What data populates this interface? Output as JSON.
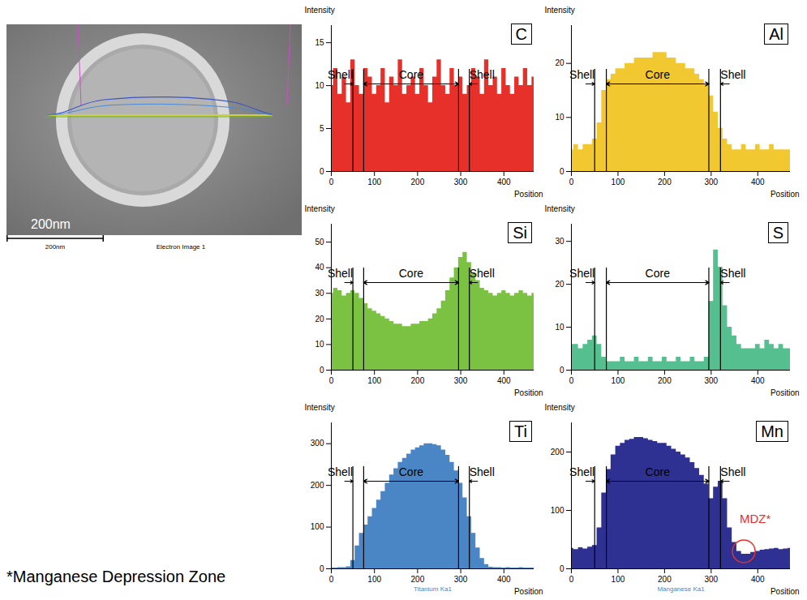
{
  "image": {
    "scale_bar_label": "200nm",
    "scale_caption": "200nm",
    "caption": "Electron Image 1"
  },
  "footnote": "*Manganese Depression Zone",
  "chart_data": [
    {
      "type": "area",
      "title": "C",
      "color": "#e8302a",
      "x_label": "Position",
      "y_label": "Intensity",
      "x": [
        0,
        10,
        20,
        30,
        40,
        50,
        60,
        70,
        80,
        90,
        100,
        110,
        120,
        130,
        140,
        150,
        160,
        170,
        180,
        190,
        200,
        210,
        220,
        230,
        240,
        250,
        260,
        270,
        280,
        290,
        300,
        310,
        320,
        330,
        340,
        350,
        360,
        370,
        380,
        390,
        400,
        410,
        420,
        430,
        440,
        450,
        460,
        470
      ],
      "values": [
        10,
        12,
        9,
        11,
        8,
        13,
        10,
        9,
        12,
        11,
        9,
        10,
        12,
        8,
        11,
        10,
        13,
        9,
        10,
        11,
        9,
        12,
        10,
        8,
        11,
        13,
        10,
        9,
        12,
        10,
        11,
        9,
        10,
        12,
        11,
        9,
        13,
        10,
        11,
        9,
        12,
        10,
        9,
        11,
        10,
        12,
        10,
        11
      ],
      "xlim": [
        0,
        470
      ],
      "xticks": [
        0,
        100,
        200,
        300,
        400
      ],
      "ylim": [
        0,
        17
      ],
      "yticks": [
        0,
        5,
        10,
        15
      ],
      "shell_core_boundaries": [
        50,
        75,
        295,
        320
      ],
      "regions": [
        "Shell",
        "Core",
        "Shell"
      ]
    },
    {
      "type": "area",
      "title": "Al",
      "color": "#f2c830",
      "x_label": "Position",
      "y_label": "Intensity",
      "x": [
        0,
        10,
        20,
        30,
        40,
        50,
        60,
        70,
        80,
        90,
        100,
        110,
        120,
        130,
        140,
        150,
        160,
        170,
        180,
        190,
        200,
        210,
        220,
        230,
        240,
        250,
        260,
        270,
        280,
        290,
        300,
        310,
        320,
        330,
        340,
        350,
        360,
        370,
        380,
        390,
        400,
        410,
        420,
        430,
        440,
        450,
        460,
        470
      ],
      "values": [
        4,
        5,
        4,
        5,
        5,
        6,
        9,
        15,
        17,
        18,
        19,
        19,
        20,
        20,
        21,
        21,
        21,
        21,
        22,
        22,
        22,
        21,
        21,
        20,
        20,
        19,
        19,
        18,
        17,
        16,
        14,
        11,
        8,
        6,
        5,
        4,
        4,
        5,
        4,
        4,
        5,
        4,
        4,
        5,
        4,
        4,
        4,
        4
      ],
      "xlim": [
        0,
        470
      ],
      "xticks": [
        0,
        100,
        200,
        300,
        400
      ],
      "ylim": [
        0,
        27
      ],
      "yticks": [
        0,
        10,
        20
      ],
      "shell_core_boundaries": [
        50,
        75,
        295,
        320
      ],
      "regions": [
        "Shell",
        "Core",
        "Shell"
      ]
    },
    {
      "type": "area",
      "title": "Si",
      "color": "#7cc242",
      "x_label": "Position",
      "y_label": "Intensity",
      "x": [
        0,
        10,
        20,
        30,
        40,
        50,
        60,
        70,
        80,
        90,
        100,
        110,
        120,
        130,
        140,
        150,
        160,
        170,
        180,
        190,
        200,
        210,
        220,
        230,
        240,
        250,
        260,
        270,
        280,
        290,
        300,
        310,
        320,
        330,
        340,
        350,
        360,
        370,
        380,
        390,
        400,
        410,
        420,
        430,
        440,
        450,
        460,
        470
      ],
      "values": [
        30,
        32,
        31,
        29,
        30,
        31,
        30,
        28,
        26,
        24,
        23,
        22,
        21,
        20,
        19,
        18,
        18,
        17,
        17,
        18,
        18,
        19,
        19,
        20,
        22,
        24,
        27,
        31,
        36,
        40,
        44,
        46,
        42,
        38,
        35,
        32,
        31,
        30,
        29,
        30,
        31,
        30,
        29,
        30,
        31,
        30,
        29,
        30
      ],
      "xlim": [
        0,
        470
      ],
      "xticks": [
        0,
        100,
        200,
        300,
        400
      ],
      "ylim": [
        0,
        57
      ],
      "yticks": [
        0,
        10,
        20,
        30,
        40,
        50
      ],
      "shell_core_boundaries": [
        50,
        75,
        295,
        320
      ],
      "regions": [
        "Shell",
        "Core",
        "Shell"
      ]
    },
    {
      "type": "area",
      "title": "S",
      "color": "#55bf8f",
      "x_label": "Position",
      "y_label": "Intensity",
      "x": [
        0,
        10,
        20,
        30,
        40,
        50,
        60,
        70,
        80,
        90,
        100,
        110,
        120,
        130,
        140,
        150,
        160,
        170,
        180,
        190,
        200,
        210,
        220,
        230,
        240,
        250,
        260,
        270,
        280,
        290,
        300,
        310,
        320,
        330,
        340,
        350,
        360,
        370,
        380,
        390,
        400,
        410,
        420,
        430,
        440,
        450,
        460,
        470
      ],
      "values": [
        6,
        6,
        5,
        6,
        7,
        8,
        6,
        3,
        2,
        2,
        2,
        3,
        2,
        2,
        3,
        2,
        2,
        3,
        2,
        2,
        3,
        2,
        2,
        3,
        2,
        2,
        3,
        2,
        2,
        3,
        16,
        28,
        24,
        15,
        10,
        8,
        6,
        5,
        5,
        5,
        6,
        5,
        7,
        6,
        5,
        6,
        5,
        5
      ],
      "xlim": [
        0,
        470
      ],
      "xticks": [
        0,
        100,
        200,
        300,
        400
      ],
      "ylim": [
        0,
        34
      ],
      "yticks": [
        0,
        10,
        20,
        30
      ],
      "shell_core_boundaries": [
        50,
        75,
        295,
        320
      ],
      "regions": [
        "Shell",
        "Core",
        "Shell"
      ]
    },
    {
      "type": "area",
      "title": "Ti",
      "color": "#4a86c5",
      "x_label": "Position",
      "y_label": "Intensity",
      "caption": "Titanium Ka1",
      "x": [
        0,
        10,
        20,
        30,
        40,
        50,
        60,
        70,
        80,
        90,
        100,
        110,
        120,
        130,
        140,
        150,
        160,
        170,
        180,
        190,
        200,
        210,
        220,
        230,
        240,
        250,
        260,
        270,
        280,
        290,
        300,
        310,
        320,
        330,
        340,
        350,
        360,
        370,
        380,
        390,
        400,
        410,
        420,
        430,
        440,
        450,
        460,
        470
      ],
      "values": [
        2,
        2,
        3,
        3,
        5,
        20,
        55,
        85,
        105,
        125,
        145,
        165,
        185,
        205,
        225,
        240,
        255,
        265,
        275,
        285,
        290,
        295,
        300,
        300,
        298,
        295,
        285,
        272,
        255,
        235,
        205,
        170,
        125,
        85,
        50,
        25,
        10,
        4,
        3,
        3,
        2,
        3,
        2,
        2,
        3,
        2,
        2,
        2
      ],
      "xlim": [
        0,
        470
      ],
      "xticks": [
        0,
        100,
        200,
        300,
        400
      ],
      "ylim": [
        0,
        350
      ],
      "yticks": [
        0,
        100,
        200,
        300
      ],
      "shell_core_boundaries": [
        50,
        75,
        295,
        320
      ],
      "regions": [
        "Shell",
        "Core",
        "Shell"
      ]
    },
    {
      "type": "area",
      "title": "Mn",
      "color": "#2e3192",
      "x_label": "Position",
      "y_label": "Intensity",
      "caption": "Manganese Ka1",
      "x": [
        0,
        10,
        20,
        30,
        40,
        50,
        60,
        70,
        80,
        90,
        100,
        110,
        120,
        130,
        140,
        150,
        160,
        170,
        180,
        190,
        200,
        210,
        220,
        230,
        240,
        250,
        260,
        270,
        280,
        290,
        300,
        310,
        320,
        330,
        340,
        350,
        360,
        370,
        380,
        390,
        400,
        410,
        420,
        430,
        440,
        450,
        460,
        470
      ],
      "values": [
        35,
        33,
        36,
        34,
        37,
        40,
        70,
        130,
        170,
        195,
        210,
        215,
        220,
        222,
        225,
        225,
        223,
        220,
        218,
        215,
        215,
        210,
        205,
        200,
        195,
        190,
        182,
        172,
        160,
        145,
        120,
        140,
        150,
        120,
        70,
        45,
        30,
        25,
        25,
        28,
        30,
        32,
        33,
        34,
        35,
        33,
        34,
        35
      ],
      "xlim": [
        0,
        470
      ],
      "xticks": [
        0,
        100,
        200,
        300,
        400
      ],
      "ylim": [
        0,
        250
      ],
      "yticks": [
        0,
        100,
        200
      ],
      "shell_core_boundaries": [
        50,
        75,
        295,
        320
      ],
      "regions": [
        "Shell",
        "Core",
        "Shell"
      ],
      "annotations": [
        {
          "text": "MDZ*",
          "x": 370,
          "y": 30,
          "color": "#e8302a"
        }
      ]
    }
  ]
}
